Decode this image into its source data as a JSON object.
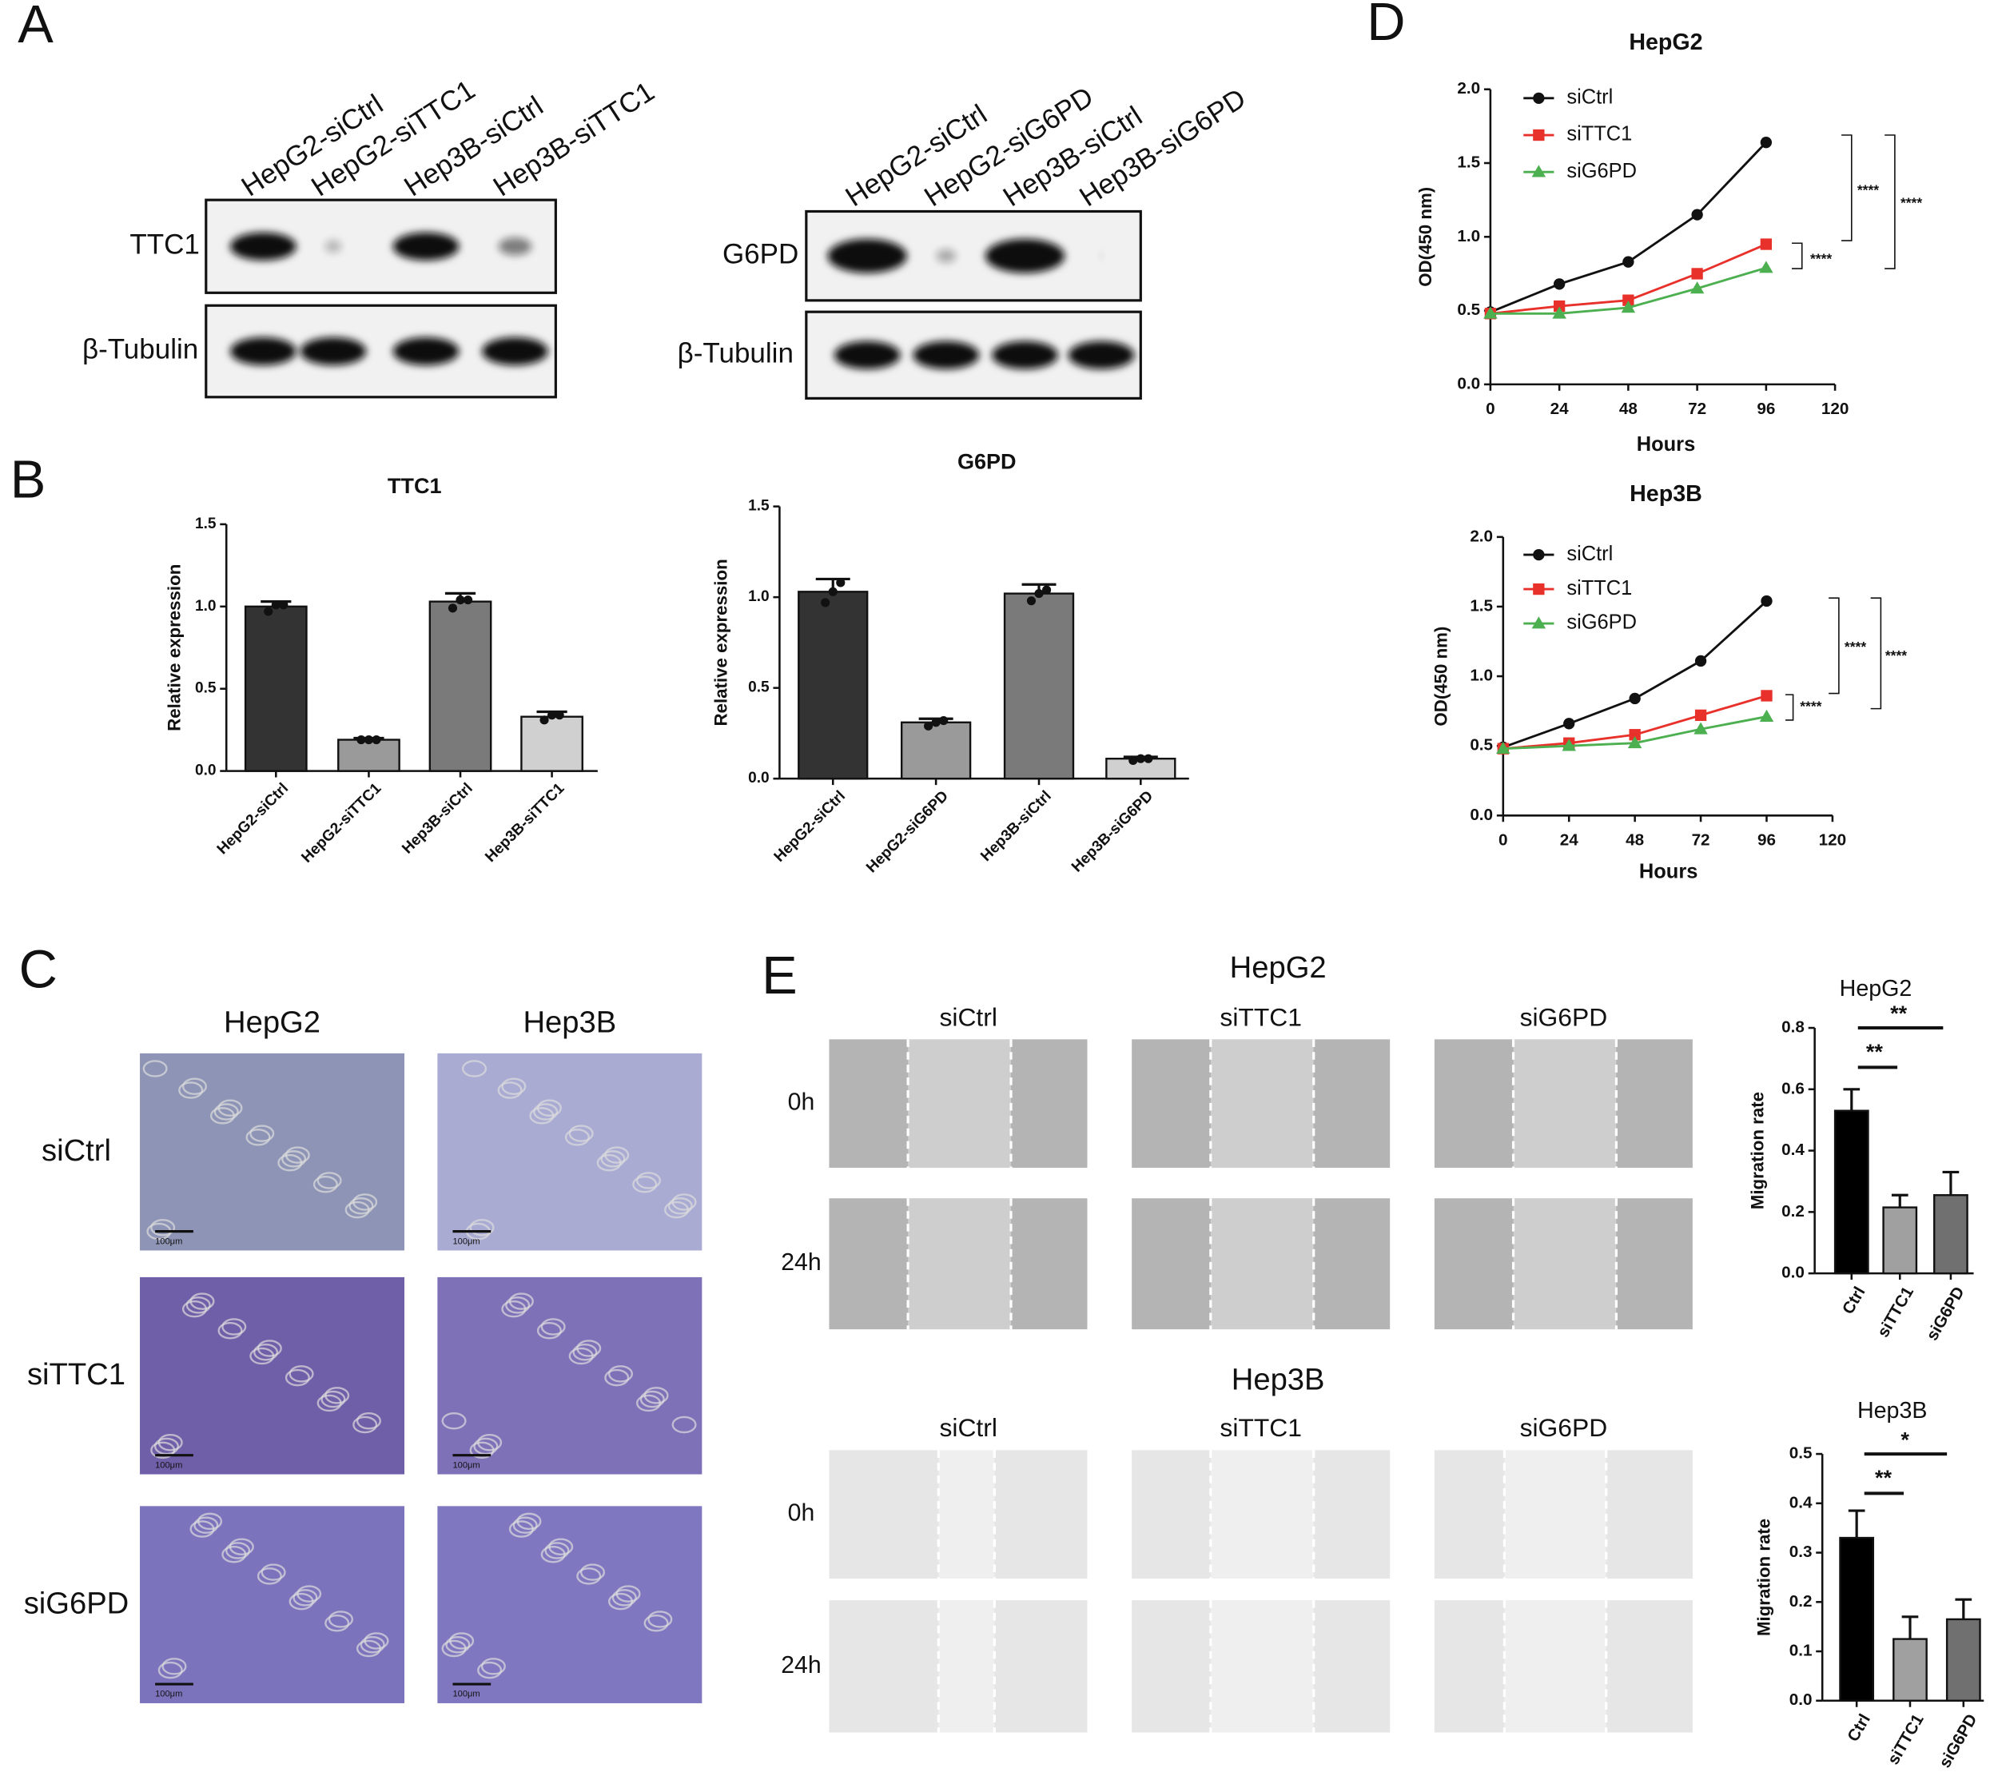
{
  "panel_labels": [
    "A",
    "B",
    "C",
    "D",
    "E"
  ],
  "blots": [
    {
      "lanes": [
        "HepG2-siCtrl",
        "HepG2-siTTC1",
        "Hep3B-siCtrl",
        "Hep3B-siTTC1"
      ],
      "rows": [
        "TTC1",
        "β-Tubulin"
      ]
    },
    {
      "lanes": [
        "HepG2-siCtrl",
        "HepG2-siG6PD",
        "Hep3B-siCtrl",
        "Hep3B-siG6PD"
      ],
      "rows": [
        "G6PD",
        "β-Tubulin"
      ]
    }
  ],
  "micrographs": {
    "columns": [
      "HepG2",
      "Hep3B"
    ],
    "rows": [
      "siCtrl",
      "siTTC1",
      "siG6PD"
    ],
    "scale_bar": "100μm"
  },
  "scratch_assays": [
    {
      "title": "HepG2",
      "columns": [
        "siCtrl",
        "siTTC1",
        "siG6PD"
      ],
      "rows": [
        "0h",
        "24h"
      ]
    },
    {
      "title": "Hep3B",
      "columns": [
        "siCtrl",
        "siTTC1",
        "siG6PD"
      ],
      "rows": [
        "0h",
        "24h"
      ]
    }
  ],
  "chart_data": [
    {
      "type": "bar",
      "title": "TTC1",
      "ylabel": "Relative expression",
      "categories": [
        "HepG2-siCtrl",
        "HepG2-siTTC1",
        "Hep3B-siCtrl",
        "Hep3B-siTTC1"
      ],
      "values": [
        1.0,
        0.19,
        1.03,
        0.33
      ],
      "errors": [
        0.03,
        0.01,
        0.05,
        0.03
      ],
      "points": [
        [
          0.97,
          1.01,
          1.01
        ],
        [
          0.19,
          0.19,
          0.19
        ],
        [
          0.99,
          1.04,
          1.04
        ],
        [
          0.31,
          0.34,
          0.34
        ]
      ],
      "colors": [
        "#333333",
        "#9a9a9a",
        "#7a7a7a",
        "#d0d0d0"
      ],
      "ylim": [
        0,
        1.5
      ],
      "yticks": [
        {
          "value": 0,
          "label": "0.0"
        },
        0.5,
        {
          "value": 1,
          "label": "1.0"
        },
        1.5
      ]
    },
    {
      "type": "bar",
      "title": "G6PD",
      "ylabel": "Relative expression",
      "categories": [
        "HepG2-siCtrl",
        "HepG2-siG6PD",
        "Hep3B-siCtrl",
        "Hep3B-siG6PD"
      ],
      "values": [
        1.03,
        0.31,
        1.02,
        0.11
      ],
      "errors": [
        0.07,
        0.02,
        0.05,
        0.01
      ],
      "points": [
        [
          0.97,
          1.03,
          1.08
        ],
        [
          0.29,
          0.31,
          0.32
        ],
        [
          0.98,
          1.02,
          1.04
        ],
        [
          0.1,
          0.11,
          0.11
        ]
      ],
      "colors": [
        "#333333",
        "#9a9a9a",
        "#7a7a7a",
        "#d0d0d0"
      ],
      "ylim": [
        0,
        1.5
      ],
      "yticks": [
        {
          "value": 0,
          "label": "0.0"
        },
        0.5,
        {
          "value": 1,
          "label": "1.0"
        },
        1.5
      ]
    },
    {
      "type": "line",
      "title": "HepG2",
      "xlabel": "Hours",
      "ylabel": "OD(450 nm)",
      "x": [
        0,
        24,
        48,
        72,
        96
      ],
      "series": [
        {
          "name": "siCtrl",
          "color": "#111111",
          "marker": "circle",
          "values": [
            0.49,
            0.68,
            0.83,
            1.15,
            1.64
          ]
        },
        {
          "name": "siTTC1",
          "color": "#e8312a",
          "marker": "square",
          "values": [
            0.48,
            0.53,
            0.57,
            0.75,
            0.95
          ]
        },
        {
          "name": "siG6PD",
          "color": "#4caf50",
          "marker": "triangle",
          "values": [
            0.48,
            0.48,
            0.52,
            0.65,
            0.79
          ]
        }
      ],
      "xlim": [
        0,
        120
      ],
      "xticks": [
        0,
        24,
        48,
        72,
        96,
        120
      ],
      "ylim": [
        0,
        2
      ],
      "yticks": [
        {
          "value": 0,
          "label": "0.0"
        },
        0.5,
        {
          "value": 1,
          "label": "1.0"
        },
        1.5,
        {
          "value": 2,
          "label": "2.0"
        }
      ],
      "annotations": [
        "****",
        "****",
        "****"
      ]
    },
    {
      "type": "line",
      "title": "Hep3B",
      "xlabel": "Hours",
      "ylabel": "OD(450 nm)",
      "x": [
        0,
        24,
        48,
        72,
        96
      ],
      "series": [
        {
          "name": "siCtrl",
          "color": "#111111",
          "marker": "circle",
          "values": [
            0.49,
            0.66,
            0.84,
            1.11,
            1.54
          ]
        },
        {
          "name": "siTTC1",
          "color": "#e8312a",
          "marker": "square",
          "values": [
            0.48,
            0.52,
            0.58,
            0.72,
            0.86
          ]
        },
        {
          "name": "siG6PD",
          "color": "#4caf50",
          "marker": "triangle",
          "values": [
            0.48,
            0.5,
            0.52,
            0.62,
            0.71
          ]
        }
      ],
      "xlim": [
        0,
        120
      ],
      "xticks": [
        0,
        24,
        48,
        72,
        96,
        120
      ],
      "ylim": [
        0,
        2
      ],
      "yticks": [
        {
          "value": 0,
          "label": "0.0"
        },
        0.5,
        {
          "value": 1,
          "label": "1.0"
        },
        1.5,
        {
          "value": 2,
          "label": "2.0"
        }
      ],
      "annotations": [
        "****",
        "****",
        "****"
      ]
    },
    {
      "type": "bar",
      "title": "HepG2",
      "ylabel": "Migration rate",
      "categories": [
        "Ctrl",
        "siTTC1",
        "siG6PD"
      ],
      "values": [
        0.53,
        0.215,
        0.255
      ],
      "errors": [
        0.07,
        0.04,
        0.075
      ],
      "colors": [
        "#000000",
        "#a0a0a0",
        "#707070"
      ],
      "ylim": [
        0,
        0.8
      ],
      "yticks": [
        {
          "value": 0,
          "label": "0.0"
        },
        0.2,
        0.4,
        0.6,
        0.8
      ],
      "annotations": [
        "**",
        "**"
      ]
    },
    {
      "type": "bar",
      "title": "Hep3B",
      "ylabel": "Migration rate",
      "categories": [
        "Ctrl",
        "siTTC1",
        "siG6PD"
      ],
      "values": [
        0.33,
        0.125,
        0.165
      ],
      "errors": [
        0.055,
        0.045,
        0.04
      ],
      "colors": [
        "#000000",
        "#a0a0a0",
        "#707070"
      ],
      "ylim": [
        0,
        0.5
      ],
      "yticks": [
        {
          "value": 0,
          "label": "0.0"
        },
        0.1,
        0.2,
        0.3,
        0.4,
        0.5
      ],
      "annotations": [
        "**",
        "*"
      ]
    }
  ]
}
